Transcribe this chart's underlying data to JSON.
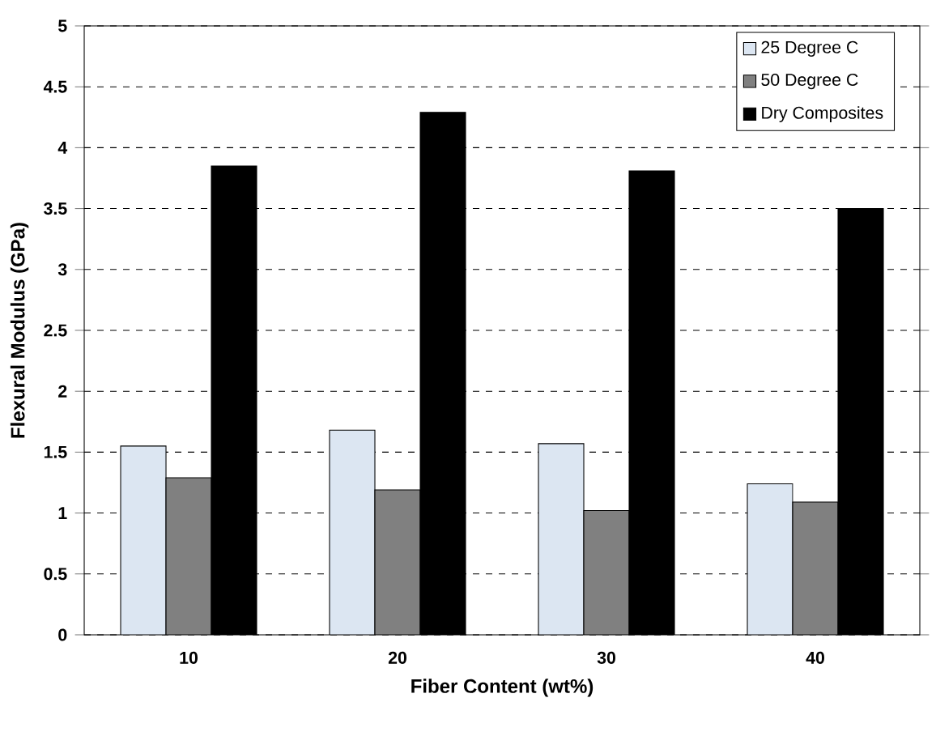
{
  "chart_data": {
    "type": "bar",
    "xlabel": "Fiber Content (wt%)",
    "ylabel": "Flexural Modulus (GPa)",
    "categories": [
      "10",
      "20",
      "30",
      "40"
    ],
    "series": [
      {
        "name": "25 Degree C",
        "color": "#dce6f2",
        "values": [
          1.55,
          1.68,
          1.57,
          1.24
        ]
      },
      {
        "name": "50 Degree C",
        "color": "#808080",
        "values": [
          1.29,
          1.19,
          1.02,
          1.09
        ]
      },
      {
        "name": "Dry Composites",
        "color": "#000000",
        "values": [
          3.85,
          4.29,
          3.81,
          3.5
        ]
      }
    ],
    "ylim": [
      0,
      5
    ],
    "yticks": [
      0,
      0.5,
      1,
      1.5,
      2,
      2.5,
      3,
      3.5,
      4,
      4.5,
      5
    ],
    "grid": "y",
    "legend": "top right"
  }
}
